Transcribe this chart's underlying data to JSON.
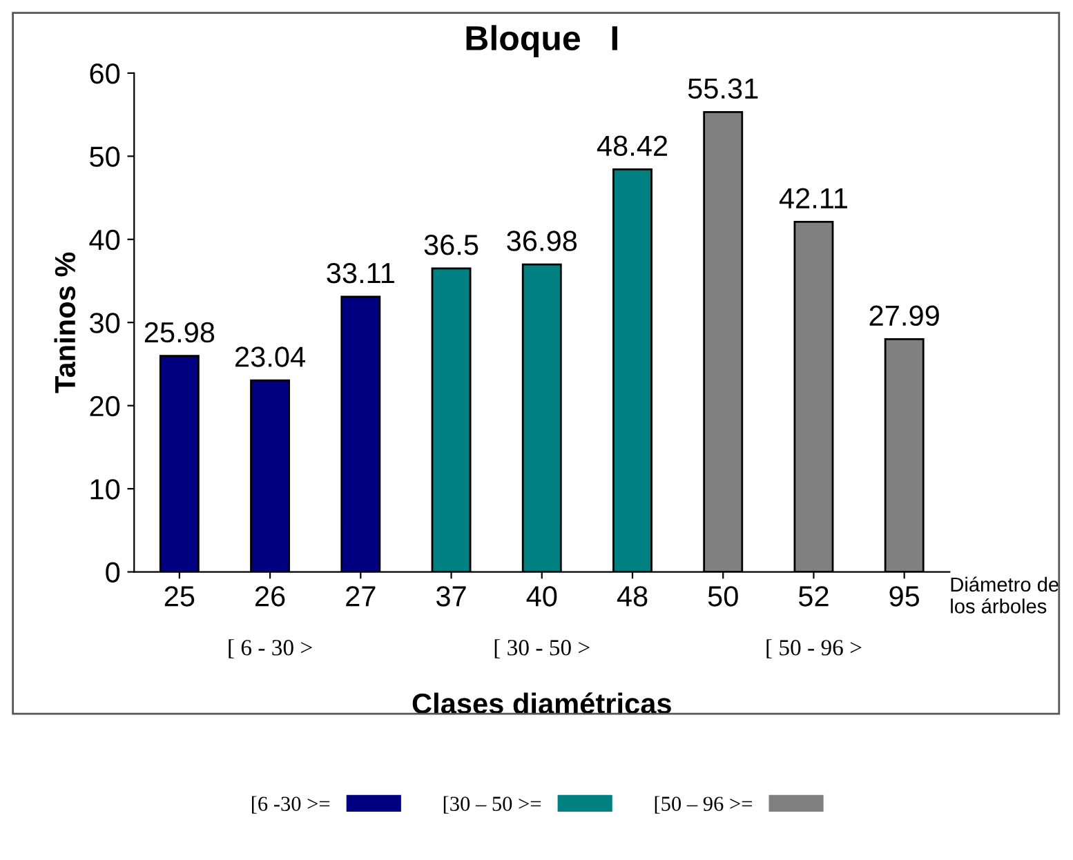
{
  "chart_data": {
    "type": "bar",
    "title": "Bloque   I",
    "xlabel": "Clases diamétricas",
    "ylabel": "Taninos %",
    "categories": [
      "25",
      "26",
      "27",
      "37",
      "40",
      "48",
      "50",
      "52",
      "95"
    ],
    "series": [
      {
        "name": "[6 -30 >=",
        "color": "#000080",
        "values": [
          25.98,
          23.04,
          33.11,
          null,
          null,
          null,
          null,
          null,
          null
        ]
      },
      {
        "name": "[30 – 50 >=",
        "color": "#008080",
        "values": [
          null,
          null,
          null,
          36.5,
          36.98,
          48.42,
          null,
          null,
          null
        ]
      },
      {
        "name": "[50 – 96 >=",
        "color": "#808080",
        "values": [
          null,
          null,
          null,
          null,
          null,
          null,
          55.31,
          42.11,
          27.99
        ]
      }
    ],
    "ylim": [
      0,
      60
    ],
    "yticks": [
      0,
      10,
      20,
      30,
      40,
      50,
      60
    ],
    "grid": false,
    "data_labels": true,
    "legend": "bottom",
    "annotations": [
      "[ 6 - 30 >",
      "[ 30 - 50 >",
      "[ 50 - 96 >",
      "Diámetro de\nlos árboles"
    ]
  }
}
